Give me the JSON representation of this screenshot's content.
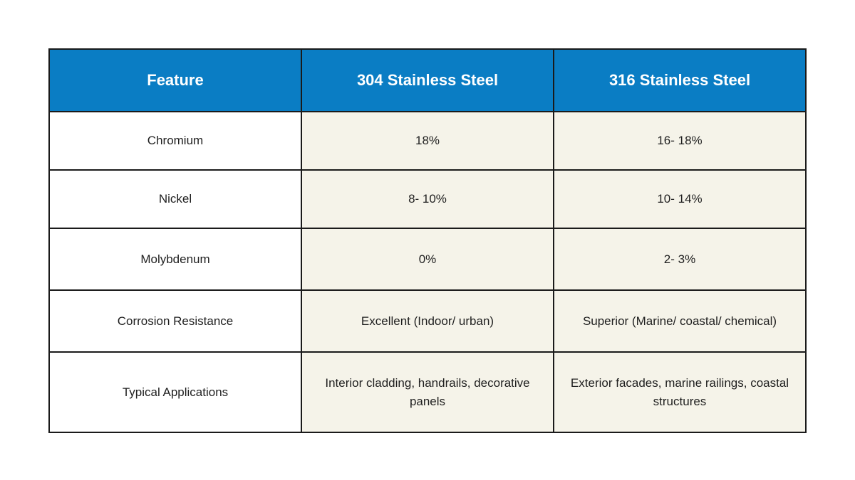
{
  "table": {
    "headers": [
      "Feature",
      "304 Stainless Steel",
      "316 Stainless Steel"
    ],
    "rows": [
      {
        "feature": "Chromium",
        "ss304": "18%",
        "ss316": "16- 18%"
      },
      {
        "feature": "Nickel",
        "ss304": "8- 10%",
        "ss316": "10- 14%"
      },
      {
        "feature": "Molybdenum",
        "ss304": "0%",
        "ss316": "2- 3%"
      },
      {
        "feature": "Corrosion Resistance",
        "ss304": "Excellent (Indoor/ urban)",
        "ss316": "Superior (Marine/ coastal/ chemical)"
      },
      {
        "feature": "Typical Applications",
        "ss304": "Interior cladding, handrails, decorative panels",
        "ss316": "Exterior facades, marine railings, coastal structures"
      }
    ]
  },
  "colors": {
    "header_bg": "#0a7dc4",
    "header_text": "#ffffff",
    "value_cell_bg": "#f5f3e9",
    "feature_cell_bg": "#ffffff",
    "border": "#1a1a1a"
  }
}
